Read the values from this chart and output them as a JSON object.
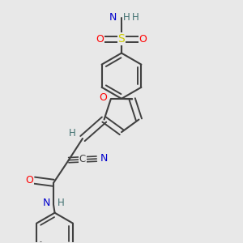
{
  "background_color": "#e8e8e8",
  "atom_colors": {
    "C": "#404040",
    "N": "#0000cc",
    "O": "#ff0000",
    "S": "#cccc00",
    "H": "#407070",
    "bond": "#404040"
  }
}
